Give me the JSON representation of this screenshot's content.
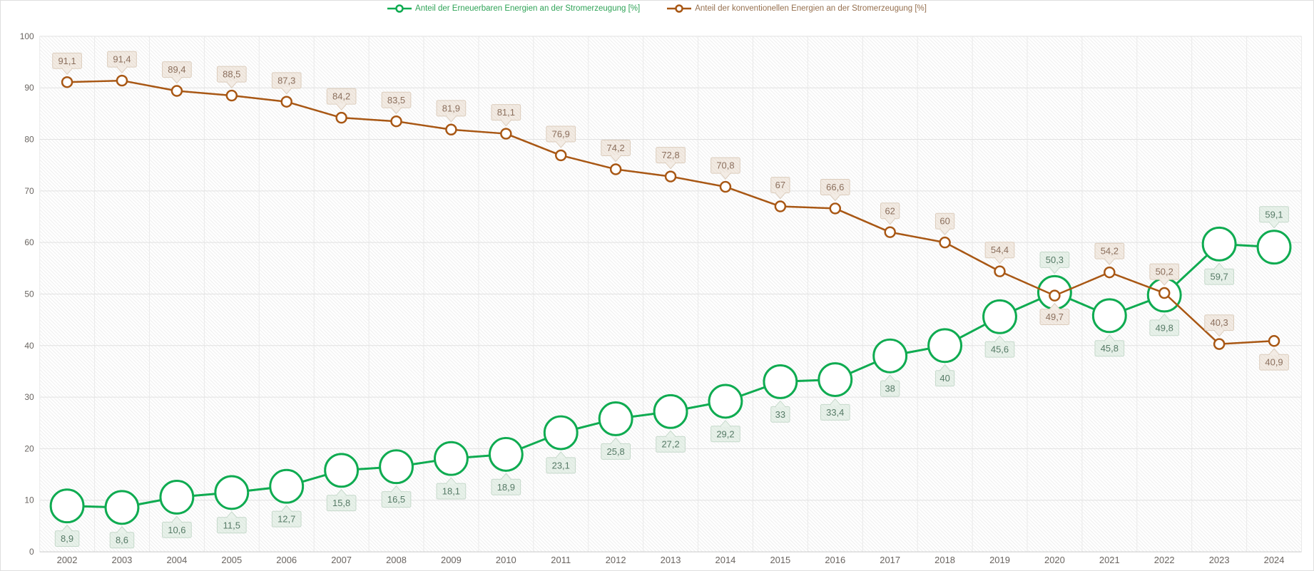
{
  "legend": {
    "items": [
      {
        "label": "Anteil der Erneuerbaren Energien an der Stromerzeugung [%]"
      },
      {
        "label": "Anteil der konventionellen Energien an der Stromerzeugung [%]"
      }
    ]
  },
  "axis": {
    "text_color": "#696460",
    "grid_h_color": "#e2e2e2",
    "grid_v_color": "#eaeaea",
    "axis_line_color": "#c9c9c9",
    "hatch_color": "#efefef"
  },
  "chart_data": {
    "type": "line",
    "title": "",
    "xlabel": "",
    "ylabel": "",
    "ylim": [
      0,
      100
    ],
    "yticks": [
      0,
      10,
      20,
      30,
      40,
      50,
      60,
      70,
      80,
      90,
      100
    ],
    "grid": true,
    "legend_position": "top",
    "categories": [
      "2002",
      "2003",
      "2004",
      "2005",
      "2006",
      "2007",
      "2008",
      "2009",
      "2010",
      "2011",
      "2012",
      "2013",
      "2014",
      "2015",
      "2016",
      "2017",
      "2018",
      "2019",
      "2020",
      "2021",
      "2022",
      "2023",
      "2024"
    ],
    "series": [
      {
        "key": "renewable",
        "name": "Anteil der Erneuerbaren Energien an der Stromerzeugung [%]",
        "color": "#0fab51",
        "legend_text_color": "#2fa357",
        "marker_radius": 23,
        "line_width": 3,
        "marker_stroke_width": 3,
        "values": [
          8.9,
          8.6,
          10.6,
          11.5,
          12.7,
          15.8,
          16.5,
          18.1,
          18.9,
          23.1,
          25.8,
          27.2,
          29.2,
          33,
          33.4,
          38,
          40,
          45.6,
          50.3,
          45.8,
          49.8,
          59.7,
          59.1
        ],
        "labels": [
          "8,9",
          "8,6",
          "10,6",
          "11,5",
          "12,7",
          "15,8",
          "16,5",
          "18,1",
          "18,9",
          "23,1",
          "25,8",
          "27,2",
          "29,2",
          "33",
          "33,4",
          "38",
          "40",
          "45,6",
          "50,3",
          "45,8",
          "49,8",
          "59,7",
          "59,1"
        ],
        "label_side": [
          "below",
          "below",
          "below",
          "below",
          "below",
          "below",
          "below",
          "below",
          "below",
          "below",
          "below",
          "below",
          "below",
          "below",
          "below",
          "below",
          "below",
          "below",
          "above",
          "below",
          "below",
          "below",
          "above"
        ],
        "label_bg": "#e9f2eb",
        "label_hatch": "#dbe8de",
        "label_border": "#c6d9cb",
        "label_text": "#567a66"
      },
      {
        "key": "conventional",
        "name": "Anteil der konventionellen Energien an der Stromerzeugung [%]",
        "color": "#a85714",
        "legend_text_color": "#96704f",
        "marker_radius": 7,
        "line_width": 2.5,
        "marker_stroke_width": 2.5,
        "values": [
          91.1,
          91.4,
          89.4,
          88.5,
          87.3,
          84.2,
          83.5,
          81.9,
          81.1,
          76.9,
          74.2,
          72.8,
          70.8,
          67,
          66.6,
          62,
          60,
          54.4,
          49.7,
          54.2,
          50.2,
          40.3,
          40.9
        ],
        "labels": [
          "91,1",
          "91,4",
          "89,4",
          "88,5",
          "87,3",
          "84,2",
          "83,5",
          "81,9",
          "81,1",
          "76,9",
          "74,2",
          "72,8",
          "70,8",
          "67",
          "66,6",
          "62",
          "60",
          "54,4",
          "49,7",
          "54,2",
          "50,2",
          "40,3",
          "40,9"
        ],
        "label_side": [
          "above",
          "above",
          "above",
          "above",
          "above",
          "above",
          "above",
          "above",
          "above",
          "above",
          "above",
          "above",
          "above",
          "above",
          "above",
          "above",
          "above",
          "above",
          "below",
          "above",
          "above",
          "above",
          "below"
        ],
        "label_bg": "#f3ece5",
        "label_hatch": "#e9ded2",
        "label_border": "#dccdbd",
        "label_text": "#8b6f5d"
      }
    ]
  }
}
